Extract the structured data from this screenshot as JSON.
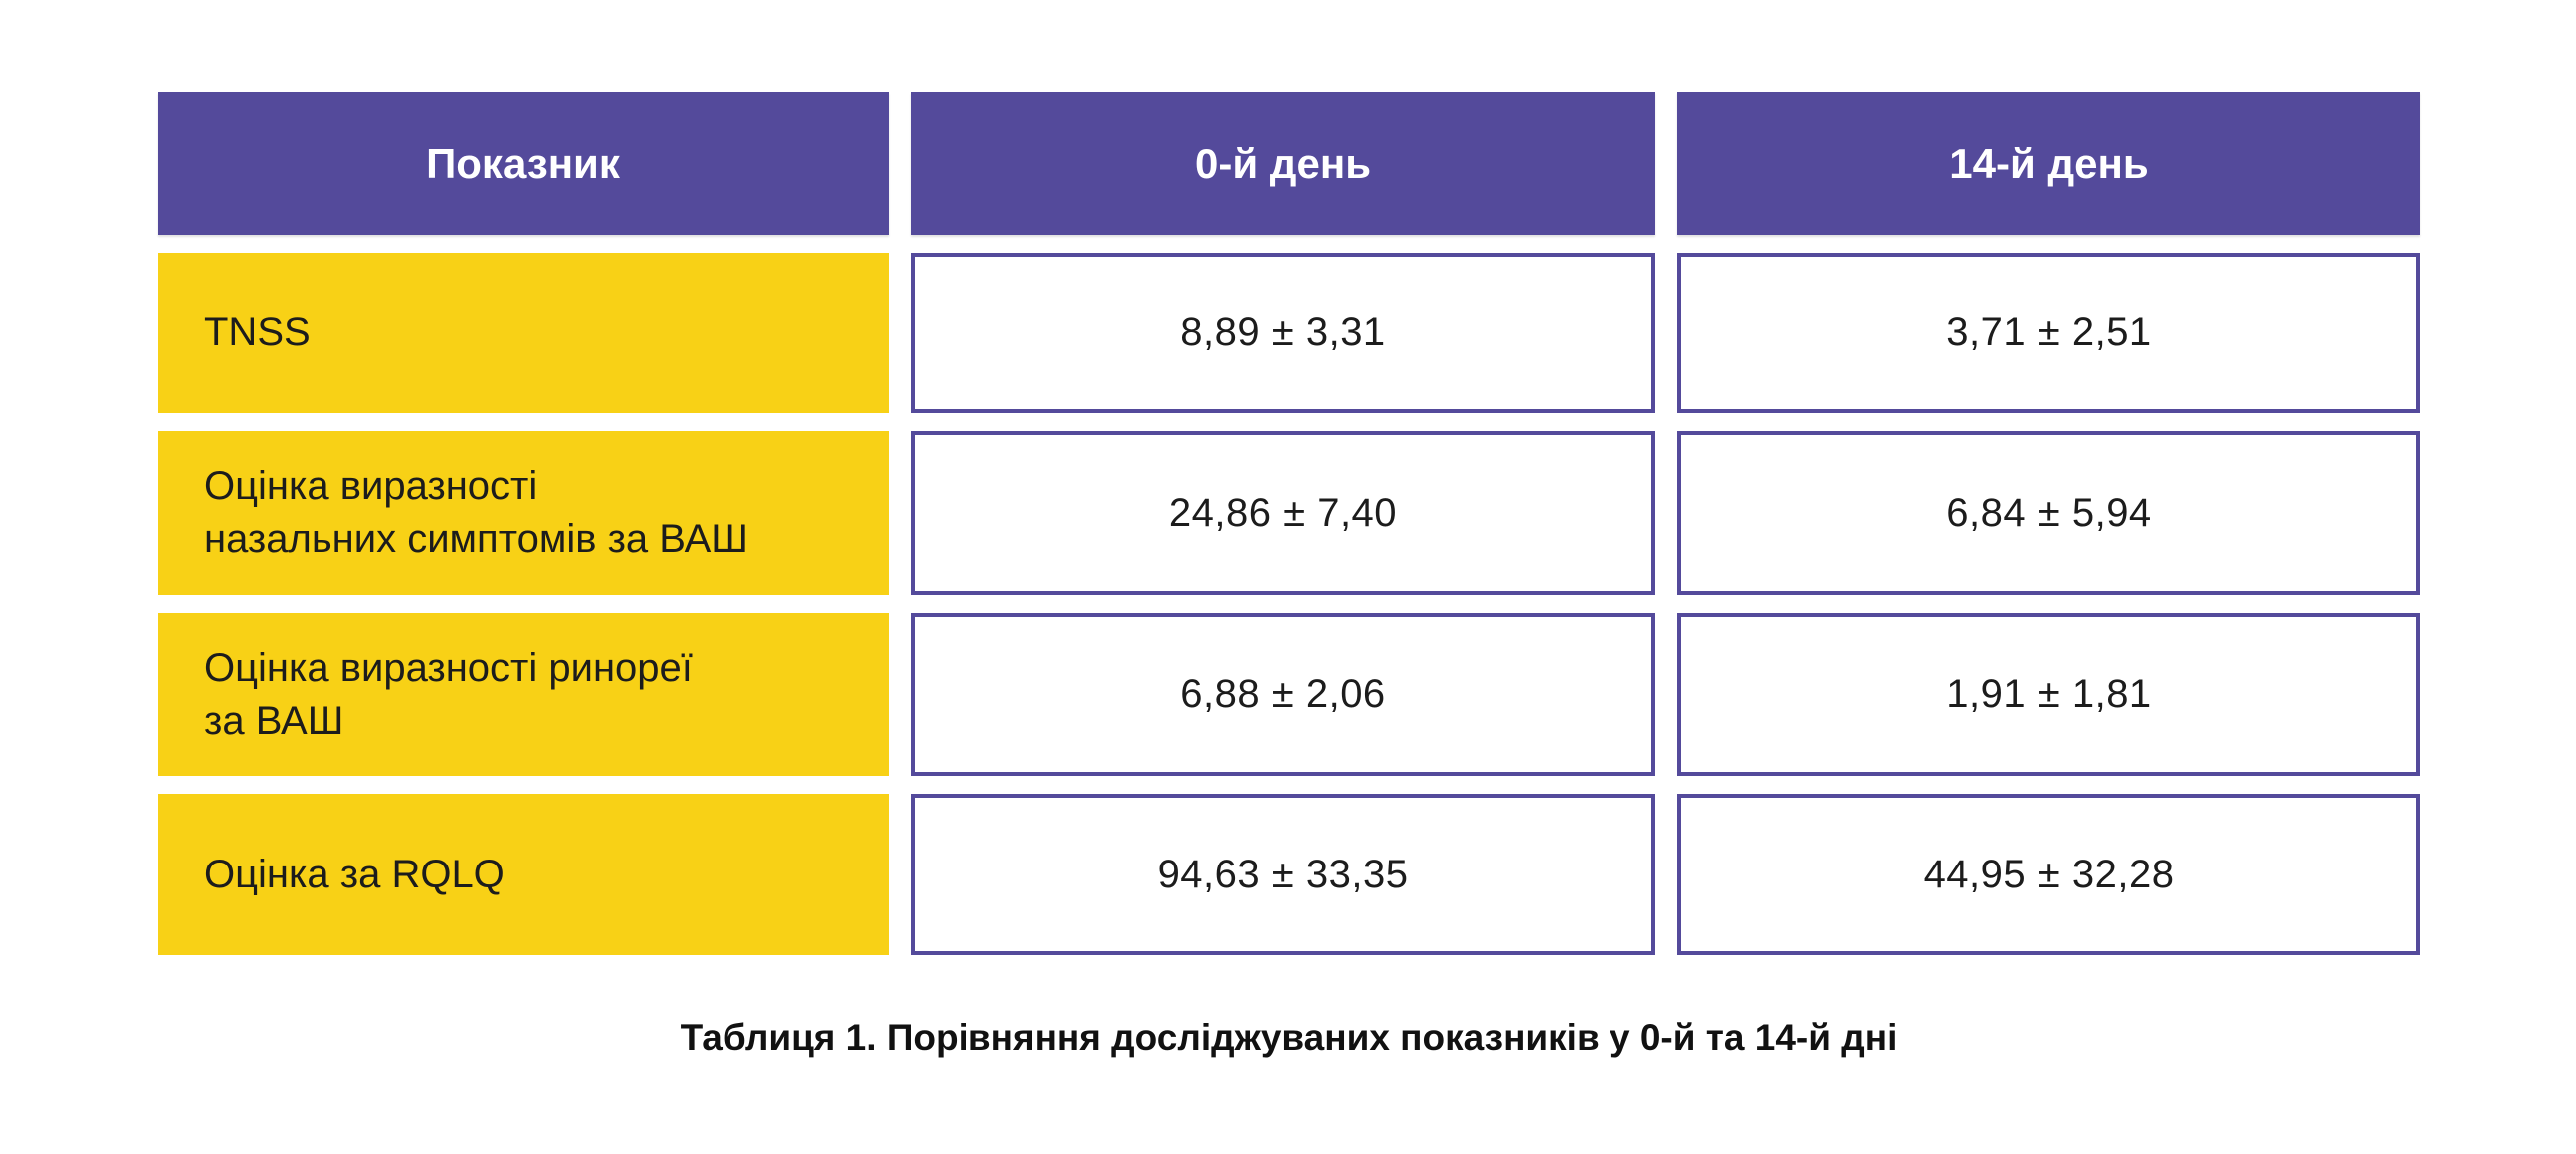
{
  "table": {
    "caption": "Таблиця 1. Порівняння досліджуваних показників у 0-й та 14-й дні",
    "columns": [
      "Показник",
      "0-й день",
      "14-й день"
    ],
    "rows": [
      {
        "label": "TNSS",
        "day0": "8,89 ± 3,31",
        "day14": "3,71 ± 2,51"
      },
      {
        "label": "Оцінка виразності\nназальних симптомів за ВАШ",
        "day0": "24,86 ± 7,40",
        "day14": "6,84 ± 5,94"
      },
      {
        "label": "Оцінка виразності ринореї\nза ВАШ",
        "day0": "6,88 ± 2,06",
        "day14": "1,91 ± 1,81"
      },
      {
        "label": "Оцінка за RQLQ",
        "day0": "94,63 ± 33,35",
        "day14": "44,95 ± 32,28"
      }
    ],
    "colors": {
      "header_bg": "#544A9B",
      "header_text": "#FFFFFF",
      "label_bg": "#F8D116",
      "cell_border": "#544A9B",
      "text": "#1C1C1C"
    }
  },
  "chart_data": {
    "type": "table",
    "title": "Таблиця 1. Порівняння досліджуваних показників у 0-й та 14-й дні",
    "columns": [
      "Показник",
      "0-й день",
      "14-й день"
    ],
    "rows": [
      [
        "TNSS",
        "8,89 ± 3,31",
        "3,71 ± 2,51"
      ],
      [
        "Оцінка виразності назальних симптомів за ВАШ",
        "24,86 ± 7,40",
        "6,84 ± 5,94"
      ],
      [
        "Оцінка виразності ринореї за ВАШ",
        "6,88 ± 2,06",
        "1,91 ± 1,81"
      ],
      [
        "Оцінка за RQLQ",
        "94,63 ± 33,35",
        "44,95 ± 32,28"
      ]
    ],
    "numeric": [
      {
        "indicator": "TNSS",
        "day0_mean": 8.89,
        "day0_sd": 3.31,
        "day14_mean": 3.71,
        "day14_sd": 2.51
      },
      {
        "indicator": "Оцінка виразності назальних симптомів за ВАШ",
        "day0_mean": 24.86,
        "day0_sd": 7.4,
        "day14_mean": 6.84,
        "day14_sd": 5.94
      },
      {
        "indicator": "Оцінка виразності ринореї за ВАШ",
        "day0_mean": 6.88,
        "day0_sd": 2.06,
        "day14_mean": 1.91,
        "day14_sd": 1.81
      },
      {
        "indicator": "Оцінка за RQLQ",
        "day0_mean": 94.63,
        "day0_sd": 33.35,
        "day14_mean": 44.95,
        "day14_sd": 32.28
      }
    ]
  }
}
